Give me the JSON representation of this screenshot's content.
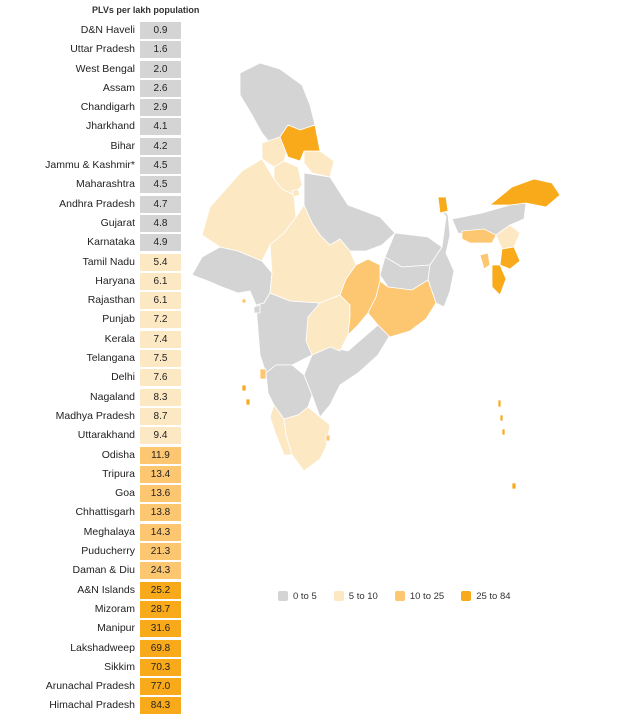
{
  "title": "PLVs per lakh population",
  "colors": {
    "c0": "#d4d4d4",
    "c1": "#fde8c4",
    "c2": "#fdc671",
    "c3": "#f8aa1b"
  },
  "chart_data": {
    "type": "choropleth-map",
    "value_label": "PLVs per lakh population",
    "rows": [
      {
        "name": "D&N Haveli",
        "value": "0.9",
        "bin": 0
      },
      {
        "name": "Uttar Pradesh",
        "value": "1.6",
        "bin": 0
      },
      {
        "name": "West Bengal",
        "value": "2.0",
        "bin": 0
      },
      {
        "name": "Assam",
        "value": "2.6",
        "bin": 0
      },
      {
        "name": "Chandigarh",
        "value": "2.9",
        "bin": 0
      },
      {
        "name": "Jharkhand",
        "value": "4.1",
        "bin": 0
      },
      {
        "name": "Bihar",
        "value": "4.2",
        "bin": 0
      },
      {
        "name": "Jammu & Kashmir*",
        "value": "4.5",
        "bin": 0
      },
      {
        "name": "Maharashtra",
        "value": "4.5",
        "bin": 0
      },
      {
        "name": "Andhra Pradesh",
        "value": "4.7",
        "bin": 0
      },
      {
        "name": "Gujarat",
        "value": "4.8",
        "bin": 0
      },
      {
        "name": "Karnataka",
        "value": "4.9",
        "bin": 0
      },
      {
        "name": "Tamil Nadu",
        "value": "5.4",
        "bin": 1
      },
      {
        "name": "Haryana",
        "value": "6.1",
        "bin": 1
      },
      {
        "name": "Rajasthan",
        "value": "6.1",
        "bin": 1
      },
      {
        "name": "Punjab",
        "value": "7.2",
        "bin": 1
      },
      {
        "name": "Kerala",
        "value": "7.4",
        "bin": 1
      },
      {
        "name": "Telangana",
        "value": "7.5",
        "bin": 1
      },
      {
        "name": "Delhi",
        "value": "7.6",
        "bin": 1
      },
      {
        "name": "Nagaland",
        "value": "8.3",
        "bin": 1
      },
      {
        "name": "Madhya Pradesh",
        "value": "8.7",
        "bin": 1
      },
      {
        "name": "Uttarakhand",
        "value": "9.4",
        "bin": 1
      },
      {
        "name": "Odisha",
        "value": "11.9",
        "bin": 2
      },
      {
        "name": "Tripura",
        "value": "13.4",
        "bin": 2
      },
      {
        "name": "Goa",
        "value": "13.6",
        "bin": 2
      },
      {
        "name": "Chhattisgarh",
        "value": "13.8",
        "bin": 2
      },
      {
        "name": "Meghalaya",
        "value": "14.3",
        "bin": 2
      },
      {
        "name": "Puducherry",
        "value": "21.3",
        "bin": 2
      },
      {
        "name": "Daman & Diu",
        "value": "24.3",
        "bin": 2
      },
      {
        "name": "A&N Islands",
        "value": "25.2",
        "bin": 3
      },
      {
        "name": "Mizoram",
        "value": "28.7",
        "bin": 3
      },
      {
        "name": "Manipur",
        "value": "31.6",
        "bin": 3
      },
      {
        "name": "Lakshadweep",
        "value": "69.8",
        "bin": 3
      },
      {
        "name": "Sikkim",
        "value": "70.3",
        "bin": 3
      },
      {
        "name": "Arunachal Pradesh",
        "value": "77.0",
        "bin": 3
      },
      {
        "name": "Himachal Pradesh",
        "value": "84.3",
        "bin": 3
      }
    ],
    "legend": [
      {
        "label": "0 to 5",
        "bin": 0
      },
      {
        "label": "5 to 10",
        "bin": 1
      },
      {
        "label": "10 to 25",
        "bin": 2
      },
      {
        "label": "25 to 84",
        "bin": 3
      }
    ]
  }
}
